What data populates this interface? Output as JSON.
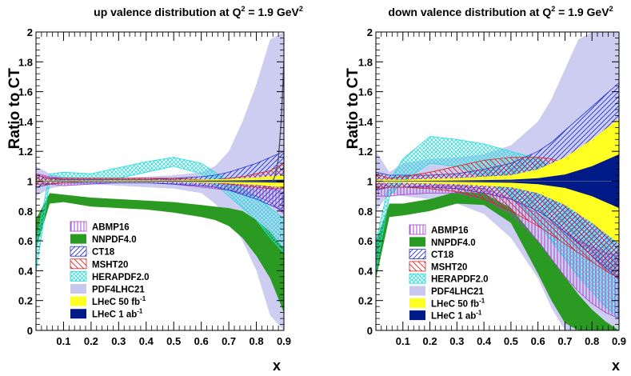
{
  "chart_data": [
    {
      "type": "area",
      "panel": "left",
      "title": {
        "main": "up valence distribution at Q",
        "sup1": "2",
        "mid": " = 1.9 GeV",
        "sup2": "2"
      },
      "ylabel": "Ratio to CT",
      "xlabel": "x",
      "xlim": [
        0.0,
        0.9
      ],
      "ylim": [
        0,
        2
      ],
      "xticks": [
        "0.1",
        "0.2",
        "0.3",
        "0.4",
        "0.5",
        "0.6",
        "0.7",
        "0.8",
        "0.9"
      ],
      "yticks": [
        "0",
        "0.2",
        "0.4",
        "0.6",
        "0.8",
        "1",
        "1.2",
        "1.4",
        "1.6",
        "1.8",
        "2"
      ],
      "legend_position": "bottom-left",
      "legend": [
        {
          "label": "ABMP16",
          "sup": "",
          "color": "#aa44cc",
          "style": "hatch-v"
        },
        {
          "label": "NNPDF4.0",
          "sup": "",
          "color": "#2a9a22",
          "style": "solid"
        },
        {
          "label": "CT18",
          "sup": "",
          "color": "#2233cc",
          "style": "hatch-d"
        },
        {
          "label": "MSHT20",
          "sup": "",
          "color": "#dd2222",
          "style": "hatch-d2"
        },
        {
          "label": "HERAPDF2.0",
          "sup": "",
          "color": "#22dddd",
          "style": "hatch-x"
        },
        {
          "label": "PDF4LHC21",
          "sup": "",
          "color": "#c8c8ef",
          "style": "solid"
        },
        {
          "label": "LHeC 50 fb",
          "sup": "-1",
          "color": "#ffff22",
          "style": "solid"
        },
        {
          "label": "LHeC 1 ab",
          "sup": "-1",
          "color": "#001a88",
          "style": "solid"
        }
      ],
      "series": [
        {
          "name": "PDF4LHC21",
          "x": [
            0.001,
            0.05,
            0.1,
            0.2,
            0.3,
            0.4,
            0.5,
            0.6,
            0.65,
            0.7,
            0.75,
            0.8,
            0.85,
            0.9
          ],
          "lo": [
            0.9,
            0.95,
            0.97,
            0.98,
            0.97,
            0.96,
            0.95,
            0.92,
            0.85,
            0.75,
            0.6,
            0.4,
            0.1,
            0.0
          ],
          "hi": [
            1.1,
            1.05,
            1.03,
            1.02,
            1.02,
            1.03,
            1.04,
            1.06,
            1.1,
            1.2,
            1.4,
            1.65,
            1.95,
            2.0
          ]
        },
        {
          "name": "NNPDF4.0",
          "x": [
            0.001,
            0.05,
            0.1,
            0.2,
            0.3,
            0.4,
            0.5,
            0.6,
            0.65,
            0.7,
            0.75,
            0.8,
            0.85,
            0.9
          ],
          "lo": [
            0.55,
            0.85,
            0.86,
            0.83,
            0.82,
            0.81,
            0.79,
            0.76,
            0.74,
            0.7,
            0.62,
            0.5,
            0.35,
            0.12
          ],
          "hi": [
            0.75,
            0.92,
            0.91,
            0.89,
            0.88,
            0.87,
            0.86,
            0.84,
            0.83,
            0.82,
            0.8,
            0.74,
            0.66,
            0.55
          ]
        },
        {
          "name": "HERAPDF2.0",
          "x": [
            0.001,
            0.05,
            0.1,
            0.2,
            0.3,
            0.4,
            0.5,
            0.6,
            0.65,
            0.7,
            0.75,
            0.8,
            0.85,
            0.9
          ],
          "lo": [
            0.4,
            1.0,
            1.01,
            1.0,
            1.02,
            1.06,
            1.1,
            1.05,
            0.98,
            0.9,
            0.82,
            0.74,
            0.62,
            0.52
          ],
          "hi": [
            0.6,
            1.05,
            1.06,
            1.05,
            1.09,
            1.13,
            1.16,
            1.12,
            1.06,
            1.0,
            0.95,
            0.9,
            0.82,
            0.75
          ]
        },
        {
          "name": "ABMP16",
          "x": [
            0.001,
            0.05,
            0.1,
            0.2,
            0.3,
            0.4,
            0.5,
            0.6,
            0.65,
            0.7,
            0.75,
            0.8,
            0.85,
            0.9
          ],
          "lo": [
            1.0,
            0.98,
            0.97,
            0.98,
            0.99,
            0.99,
            0.98,
            0.96,
            0.95,
            0.94,
            0.92,
            0.9,
            0.86,
            0.78
          ],
          "hi": [
            1.05,
            1.03,
            1.02,
            1.02,
            1.02,
            1.02,
            1.01,
            1.0,
            0.99,
            0.99,
            0.98,
            0.98,
            0.96,
            0.92
          ]
        },
        {
          "name": "CT18",
          "x": [
            0.001,
            0.05,
            0.1,
            0.2,
            0.3,
            0.4,
            0.5,
            0.6,
            0.65,
            0.7,
            0.75,
            0.8,
            0.85,
            0.9
          ],
          "lo": [
            0.96,
            0.98,
            0.99,
            0.99,
            0.99,
            0.99,
            0.98,
            0.97,
            0.96,
            0.94,
            0.91,
            0.88,
            0.84,
            0.8
          ],
          "hi": [
            1.04,
            1.02,
            1.01,
            1.01,
            1.01,
            1.01,
            1.02,
            1.03,
            1.04,
            1.06,
            1.09,
            1.12,
            1.16,
            1.2
          ]
        },
        {
          "name": "MSHT20",
          "x": [
            0.001,
            0.05,
            0.1,
            0.2,
            0.3,
            0.4,
            0.5,
            0.6,
            0.65,
            0.7,
            0.75,
            0.8,
            0.85,
            0.9
          ],
          "lo": [
            0.98,
            0.98,
            0.99,
            1.0,
            1.0,
            1.0,
            1.0,
            0.99,
            0.99,
            0.98,
            0.97,
            0.96,
            0.95,
            0.95
          ],
          "hi": [
            1.04,
            1.02,
            1.02,
            1.02,
            1.02,
            1.02,
            1.02,
            1.01,
            1.01,
            1.02,
            1.03,
            1.05,
            1.07,
            1.12
          ]
        },
        {
          "name": "LHeC 50 fb-1",
          "x": [
            0.001,
            0.1,
            0.3,
            0.5,
            0.7,
            0.8,
            0.9
          ],
          "lo": [
            0.995,
            0.995,
            0.994,
            0.993,
            0.985,
            0.975,
            0.96
          ],
          "hi": [
            1.005,
            1.005,
            1.006,
            1.007,
            1.015,
            1.025,
            1.04
          ]
        },
        {
          "name": "LHeC 1 ab-1",
          "x": [
            0.001,
            0.1,
            0.3,
            0.5,
            0.7,
            0.8,
            0.9
          ],
          "lo": [
            0.998,
            0.998,
            0.998,
            0.997,
            0.995,
            0.993,
            0.99
          ],
          "hi": [
            1.002,
            1.002,
            1.002,
            1.003,
            1.005,
            1.007,
            1.01
          ]
        }
      ],
      "spike_line": {
        "name": "PDF4LHC21 edge",
        "x": [
          0.86,
          0.87,
          0.88,
          0.89,
          0.9
        ],
        "y": [
          1.0,
          1.05,
          1.15,
          1.4,
          1.8
        ]
      }
    },
    {
      "type": "area",
      "panel": "right",
      "title": {
        "main": "down valence distribution at Q",
        "sup1": "2",
        "mid": " = 1.9 GeV",
        "sup2": "2"
      },
      "ylabel": "Ratio to CT",
      "xlabel": "x",
      "xlim": [
        0.0,
        0.9
      ],
      "ylim": [
        0,
        2
      ],
      "xticks": [
        "0.1",
        "0.2",
        "0.3",
        "0.4",
        "0.5",
        "0.6",
        "0.7",
        "0.8",
        "0.9"
      ],
      "yticks": [
        "0",
        "0.2",
        "0.4",
        "0.6",
        "0.8",
        "1",
        "1.2",
        "1.4",
        "1.6",
        "1.8",
        "2"
      ],
      "legend_position": "bottom-left",
      "legend": [
        {
          "label": "ABMP16",
          "sup": "",
          "color": "#aa44cc",
          "style": "hatch-v"
        },
        {
          "label": "NNPDF4.0",
          "sup": "",
          "color": "#2a9a22",
          "style": "solid"
        },
        {
          "label": "CT18",
          "sup": "",
          "color": "#2233cc",
          "style": "hatch-d"
        },
        {
          "label": "MSHT20",
          "sup": "",
          "color": "#dd2222",
          "style": "hatch-d2"
        },
        {
          "label": "HERAPDF2.0",
          "sup": "",
          "color": "#22dddd",
          "style": "hatch-x"
        },
        {
          "label": "PDF4LHC21",
          "sup": "",
          "color": "#c8c8ef",
          "style": "solid"
        },
        {
          "label": "LHeC 50 fb",
          "sup": "-1",
          "color": "#ffff22",
          "style": "solid"
        },
        {
          "label": "LHeC 1 ab",
          "sup": "-1",
          "color": "#001a88",
          "style": "solid"
        }
      ],
      "series": [
        {
          "name": "PDF4LHC21",
          "x": [
            0.001,
            0.05,
            0.1,
            0.2,
            0.3,
            0.4,
            0.5,
            0.6,
            0.65,
            0.7,
            0.75,
            0.8,
            0.85,
            0.9
          ],
          "lo": [
            0.8,
            0.92,
            0.9,
            0.88,
            0.85,
            0.78,
            0.62,
            0.35,
            0.15,
            0.0,
            0.0,
            0.0,
            0.0,
            0.0
          ],
          "hi": [
            1.2,
            1.06,
            1.12,
            1.15,
            1.16,
            1.18,
            1.24,
            1.4,
            1.55,
            1.75,
            1.95,
            2.0,
            2.0,
            2.0
          ]
        },
        {
          "name": "NNPDF4.0",
          "x": [
            0.001,
            0.05,
            0.1,
            0.2,
            0.3,
            0.4,
            0.5,
            0.6,
            0.65,
            0.7,
            0.75,
            0.8,
            0.85,
            0.9
          ],
          "lo": [
            0.35,
            0.76,
            0.77,
            0.8,
            0.85,
            0.84,
            0.72,
            0.38,
            0.2,
            0.05,
            0.0,
            0.0,
            0.0,
            0.0
          ],
          "hi": [
            0.6,
            0.85,
            0.85,
            0.88,
            0.93,
            0.92,
            0.82,
            0.6,
            0.48,
            0.36,
            0.24,
            0.14,
            0.06,
            0.0
          ]
        },
        {
          "name": "HERAPDF2.0",
          "x": [
            0.001,
            0.05,
            0.1,
            0.2,
            0.3,
            0.4,
            0.5,
            0.6,
            0.65,
            0.7,
            0.75,
            0.8,
            0.85,
            0.9
          ],
          "lo": [
            0.4,
            0.9,
            1.0,
            1.12,
            1.1,
            1.02,
            0.9,
            0.72,
            0.6,
            0.48,
            0.36,
            0.26,
            0.16,
            0.08
          ],
          "hi": [
            0.6,
            1.0,
            1.15,
            1.3,
            1.28,
            1.25,
            1.2,
            1.15,
            1.1,
            1.05,
            0.95,
            0.82,
            0.7,
            0.58
          ]
        },
        {
          "name": "ABMP16",
          "x": [
            0.001,
            0.05,
            0.1,
            0.2,
            0.3,
            0.4,
            0.5,
            0.6,
            0.65,
            0.7,
            0.75,
            0.8,
            0.85,
            0.9
          ],
          "lo": [
            0.9,
            0.9,
            0.91,
            0.92,
            0.92,
            0.88,
            0.78,
            0.6,
            0.48,
            0.36,
            0.26,
            0.18,
            0.12,
            0.08
          ],
          "hi": [
            1.0,
            0.96,
            0.96,
            0.97,
            0.97,
            0.95,
            0.88,
            0.78,
            0.72,
            0.66,
            0.6,
            0.56,
            0.52,
            0.5
          ]
        },
        {
          "name": "CT18",
          "x": [
            0.001,
            0.05,
            0.1,
            0.2,
            0.3,
            0.4,
            0.5,
            0.6,
            0.65,
            0.7,
            0.75,
            0.8,
            0.85,
            0.9
          ],
          "lo": [
            0.94,
            0.96,
            0.96,
            0.96,
            0.95,
            0.92,
            0.88,
            0.8,
            0.74,
            0.66,
            0.58,
            0.5,
            0.42,
            0.34
          ],
          "hi": [
            1.06,
            1.04,
            1.04,
            1.04,
            1.05,
            1.08,
            1.12,
            1.2,
            1.26,
            1.34,
            1.42,
            1.5,
            1.58,
            1.66
          ]
        },
        {
          "name": "MSHT20",
          "x": [
            0.001,
            0.05,
            0.1,
            0.2,
            0.3,
            0.4,
            0.5,
            0.6,
            0.65,
            0.7,
            0.75,
            0.8,
            0.85,
            0.9
          ],
          "lo": [
            0.95,
            0.96,
            0.96,
            0.95,
            0.93,
            0.88,
            0.8,
            0.7,
            0.64,
            0.58,
            0.52,
            0.46,
            0.4,
            0.35
          ],
          "hi": [
            1.05,
            1.02,
            1.03,
            1.06,
            1.1,
            1.14,
            1.16,
            1.16,
            1.15,
            1.12,
            1.08,
            1.04,
            1.0,
            0.95
          ]
        },
        {
          "name": "LHeC 50 fb-1",
          "x": [
            0.001,
            0.1,
            0.3,
            0.5,
            0.6,
            0.7,
            0.8,
            0.9
          ],
          "lo": [
            0.99,
            0.99,
            0.98,
            0.96,
            0.92,
            0.84,
            0.72,
            0.58
          ],
          "hi": [
            1.01,
            1.01,
            1.02,
            1.04,
            1.08,
            1.16,
            1.28,
            1.42
          ]
        },
        {
          "name": "LHeC 1 ab-1",
          "x": [
            0.001,
            0.1,
            0.3,
            0.5,
            0.6,
            0.7,
            0.8,
            0.9
          ],
          "lo": [
            0.998,
            0.998,
            0.995,
            0.99,
            0.98,
            0.955,
            0.9,
            0.82
          ],
          "hi": [
            1.002,
            1.002,
            1.005,
            1.01,
            1.02,
            1.045,
            1.1,
            1.18
          ]
        }
      ]
    }
  ]
}
